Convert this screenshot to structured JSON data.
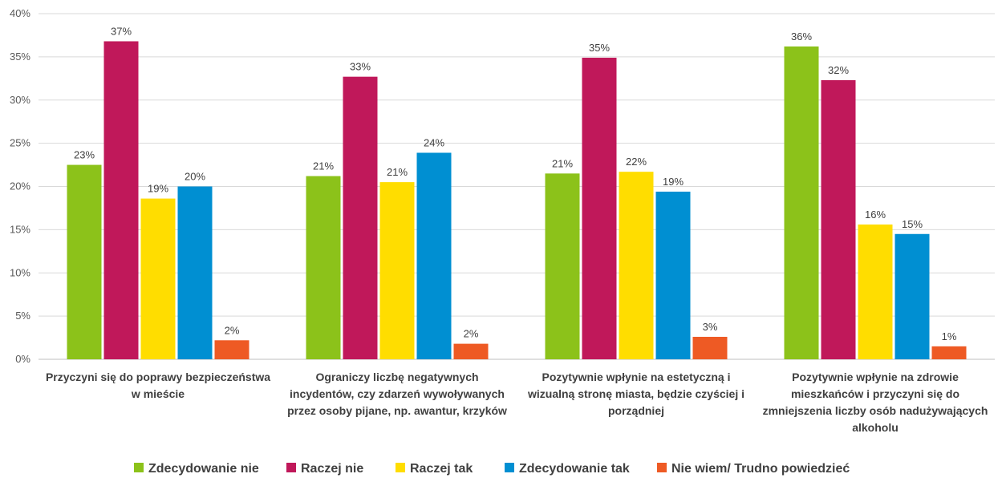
{
  "chart_data": {
    "type": "bar",
    "categories": [
      [
        "Przyczyni się do poprawy bezpieczeństwa",
        "w mieście"
      ],
      [
        "Ograniczy liczbę negatywnych",
        "incydentów, czy zdarzeń wywoływanych",
        "przez osoby pijane, np. awantur, krzyków"
      ],
      [
        "Pozytywnie wpłynie na estetyczną i",
        "wizualną stronę miasta, będzie czyściej i",
        "porządniej"
      ],
      [
        "Pozytywnie wpłynie na zdrowie",
        "mieszkańców i przyczyni się do",
        "zmniejszenia liczby osób nadużywających",
        "alkoholu"
      ]
    ],
    "series": [
      {
        "name": "Zdecydowanie nie",
        "color": "#8cc21a",
        "values": [
          22.5,
          21.2,
          21.5,
          36.2
        ],
        "labels": [
          "23%",
          "21%",
          "21%",
          "36%"
        ]
      },
      {
        "name": "Raczej nie",
        "color": "#c0185a",
        "values": [
          36.8,
          32.7,
          34.9,
          32.3
        ],
        "labels": [
          "37%",
          "33%",
          "35%",
          "32%"
        ]
      },
      {
        "name": "Raczej tak",
        "color": "#ffdd00",
        "values": [
          18.6,
          20.5,
          21.7,
          15.6
        ],
        "labels": [
          "19%",
          "21%",
          "22%",
          "16%"
        ]
      },
      {
        "name": "Zdecydowanie tak",
        "color": "#008fd2",
        "values": [
          20.0,
          23.9,
          19.4,
          14.5
        ],
        "labels": [
          "20%",
          "24%",
          "19%",
          "15%"
        ]
      },
      {
        "name": "Nie wiem/ Trudno powiedzieć",
        "color": "#ee5a24",
        "values": [
          2.2,
          1.8,
          2.6,
          1.5
        ],
        "labels": [
          "2%",
          "2%",
          "3%",
          "1%"
        ]
      }
    ],
    "ylim": [
      0,
      40
    ],
    "yticks": [
      0,
      5,
      10,
      15,
      20,
      25,
      30,
      35,
      40
    ],
    "ytick_labels": [
      "0%",
      "5%",
      "10%",
      "15%",
      "20%",
      "25%",
      "30%",
      "35%",
      "40%"
    ],
    "grid": true,
    "legend_position": "bottom"
  }
}
